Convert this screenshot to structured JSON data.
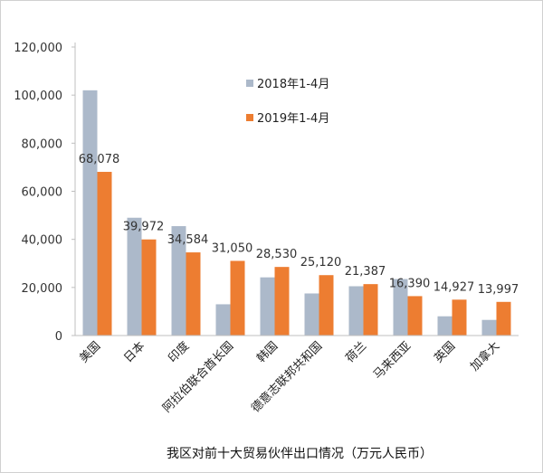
{
  "chart_data": {
    "type": "bar",
    "title": "",
    "xlabel": "我区对前十大贸易伙伴出口情况（万元人民币）",
    "ylabel": "",
    "ylim": [
      0,
      120000
    ],
    "yticks": [
      "0",
      "20,000",
      "40,000",
      "60,000",
      "80,000",
      "100,000",
      "120,000"
    ],
    "grid": false,
    "legend_position": "top-center",
    "categories": [
      "美国",
      "日本",
      "印度",
      "阿拉伯联合酋长国",
      "韩国",
      "德意志联邦共和国",
      "荷兰",
      "马来西亚",
      "英国",
      "加拿大"
    ],
    "series": [
      {
        "name": "2018年1-4月",
        "color": "#acb9ca",
        "values": [
          102000,
          49000,
          45500,
          13000,
          24200,
          17500,
          20500,
          23500,
          8000,
          6500
        ]
      },
      {
        "name": "2019年1-4月",
        "color": "#ed7d31",
        "values": [
          68078,
          39972,
          34584,
          31050,
          28530,
          25120,
          21387,
          16390,
          14927,
          13997
        ]
      }
    ],
    "data_labels": [
      "68,078",
      "39,972",
      "34,584",
      "31,050",
      "28,530",
      "25,120",
      "21,387",
      "16,390",
      "14,927",
      "13,997"
    ]
  }
}
